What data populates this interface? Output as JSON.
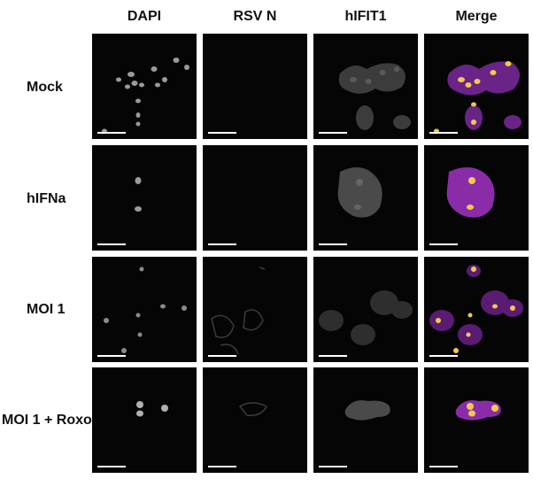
{
  "columns": [
    "DAPI",
    "RSV N",
    "hIFIT1",
    "Merge"
  ],
  "rows": [
    "Mock",
    "hIFNa",
    "MOI 1",
    "MOI 1 + Roxo"
  ],
  "colors": {
    "background": "#ffffff",
    "panel": "#050505",
    "nucleus": "#f2c94c",
    "cytoplasm": "#b13bd1"
  }
}
